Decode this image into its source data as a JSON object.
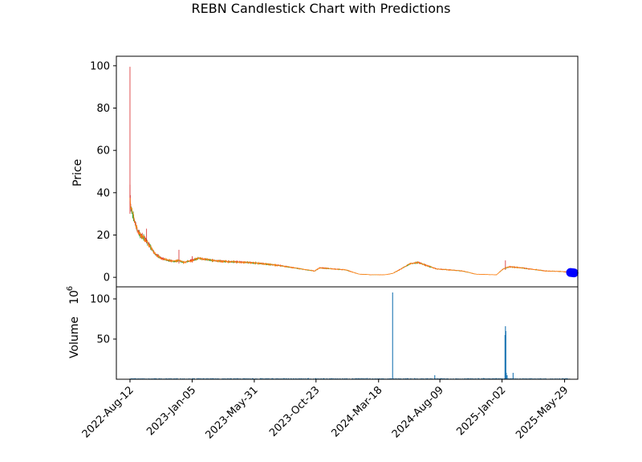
{
  "chart_data": {
    "type": "candlestick",
    "title": "REBN Candlestick Chart with Predictions",
    "price_panel": {
      "ylabel": "Price",
      "ylim": [
        -4.5,
        104.5
      ],
      "yticks": [
        0,
        20,
        40,
        60,
        80,
        100
      ],
      "colors": {
        "up": "#2ca02c",
        "down": "#d62728",
        "close_line": "#ff7f0e",
        "prediction": "#0000ff"
      },
      "series_approx": [
        [
          "2022-08-12",
          40
        ],
        [
          "2022-08-14",
          33
        ],
        [
          "2022-08-18",
          30
        ],
        [
          "2022-08-24",
          26
        ],
        [
          "2022-08-30",
          22
        ],
        [
          "2022-09-05",
          20
        ],
        [
          "2022-09-12",
          19
        ],
        [
          "2022-09-20",
          17
        ],
        [
          "2022-09-30",
          14
        ],
        [
          "2022-10-10",
          11
        ],
        [
          "2022-10-25",
          9
        ],
        [
          "2022-11-10",
          8
        ],
        [
          "2022-11-25",
          7.5
        ],
        [
          "2022-12-05",
          8
        ],
        [
          "2022-12-15",
          7
        ],
        [
          "2023-01-05",
          8
        ],
        [
          "2023-01-20",
          9
        ],
        [
          "2023-02-20",
          8
        ],
        [
          "2023-03-20",
          7.5
        ],
        [
          "2023-05-01",
          7.2
        ],
        [
          "2023-06-01",
          6.8
        ],
        [
          "2023-07-01",
          6.2
        ],
        [
          "2023-08-01",
          5.5
        ],
        [
          "2023-09-01",
          4.5
        ],
        [
          "2023-10-01",
          3.5
        ],
        [
          "2023-10-20",
          3
        ],
        [
          "2023-11-01",
          4.5
        ],
        [
          "2023-12-01",
          4
        ],
        [
          "2024-01-01",
          3.5
        ],
        [
          "2024-02-01",
          1.5
        ],
        [
          "2024-03-01",
          1.2
        ],
        [
          "2024-04-01",
          1.2
        ],
        [
          "2024-04-20",
          1.8
        ],
        [
          "2024-05-10",
          4
        ],
        [
          "2024-06-01",
          6.5
        ],
        [
          "2024-06-20",
          7
        ],
        [
          "2024-07-10",
          5.5
        ],
        [
          "2024-08-01",
          4
        ],
        [
          "2024-09-01",
          3.5
        ],
        [
          "2024-10-01",
          3
        ],
        [
          "2024-11-01",
          1.5
        ],
        [
          "2024-12-20",
          1.2
        ],
        [
          "2025-01-05",
          4
        ],
        [
          "2025-01-20",
          5
        ],
        [
          "2025-02-15",
          4.5
        ],
        [
          "2025-03-15",
          3.8
        ],
        [
          "2025-04-15",
          3
        ],
        [
          "2025-05-15",
          2.8
        ],
        [
          "2025-06-10",
          2.5
        ]
      ],
      "spikes": [
        {
          "date": "2022-08-12",
          "high": 99.5,
          "low": 30
        },
        {
          "date": "2022-09-20",
          "high": 23,
          "low": 16
        },
        {
          "date": "2022-12-05",
          "high": 13,
          "low": 6.5
        },
        {
          "date": "2023-01-05",
          "high": 10,
          "low": 7
        },
        {
          "date": "2025-01-10",
          "high": 8,
          "low": 3.5
        }
      ],
      "predictions": [
        {
          "date": "2025-06-12",
          "value": 2.3
        },
        {
          "date": "2025-06-16",
          "value": 2.2
        },
        {
          "date": "2025-06-20",
          "value": 2.1
        }
      ]
    },
    "volume_panel": {
      "ylabel": "Volume",
      "yunit": "10",
      "yunit_exp": "6",
      "ylim": [
        0,
        115
      ],
      "yticks": [
        50,
        100
      ],
      "color": "#1f77b4",
      "bars": [
        [
          "2024-04-20",
          108
        ],
        [
          "2024-07-28",
          5
        ],
        [
          "2024-11-20",
          1.5
        ],
        [
          "2025-01-09",
          55
        ],
        [
          "2025-01-10",
          66
        ],
        [
          "2025-01-11",
          60
        ],
        [
          "2025-01-12",
          8
        ],
        [
          "2025-01-14",
          5
        ],
        [
          "2025-01-28",
          8
        ],
        [
          "2024-02-20",
          1.5
        ],
        [
          "2023-10-05",
          1.5
        ]
      ],
      "baseline": 1.0
    },
    "xaxis": {
      "range": [
        "2022-07-11",
        "2025-06-29"
      ],
      "ticks": [
        "2022-Aug-12",
        "2023-Jan-05",
        "2023-May-31",
        "2023-Oct-23",
        "2024-Mar-18",
        "2024-Aug-09",
        "2025-Jan-02",
        "2025-May-29"
      ],
      "tick_dates": [
        "2022-08-12",
        "2023-01-05",
        "2023-05-31",
        "2023-10-23",
        "2024-03-18",
        "2024-08-09",
        "2025-01-02",
        "2025-05-29"
      ]
    }
  }
}
